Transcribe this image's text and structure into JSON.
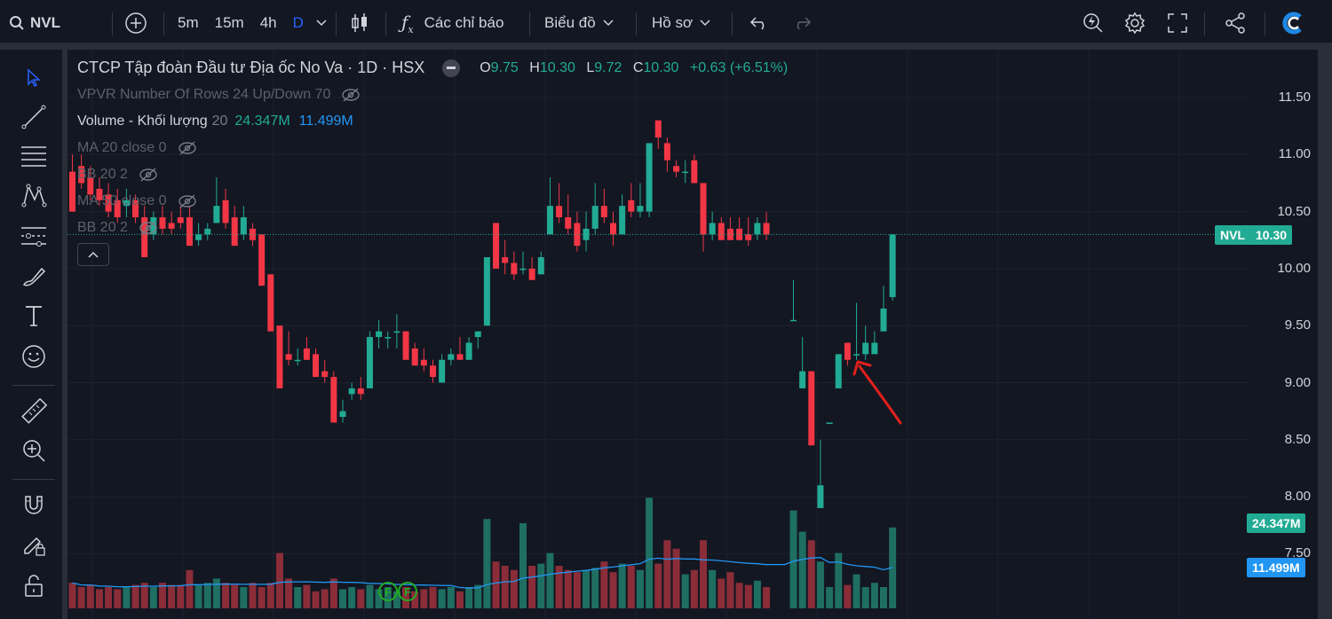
{
  "toolbar": {
    "symbol": "NVL",
    "intervals": [
      "5m",
      "15m",
      "4h",
      "D"
    ],
    "active_interval": "D",
    "indicators_label": "Các chỉ báo",
    "chart_label": "Biểu đồ",
    "profile_label": "Hồ sơ"
  },
  "legend": {
    "title": "CTCP Tập đoàn Đầu tư Địa ốc No Va · 1D · HSX",
    "o_label": "O",
    "o": "9.75",
    "h_label": "H",
    "h": "10.30",
    "l_label": "L",
    "l": "9.72",
    "c_label": "C",
    "c": "10.30",
    "change": "+0.63 (+6.51%)",
    "indicators": [
      {
        "label": "VPVR Number Of Rows 24 Up/Down 70"
      },
      {
        "label": "Volume - Khối lượng",
        "param": "20",
        "v1": "24.347M",
        "v2": "11.499M"
      },
      {
        "label": "MA 20 close 0"
      },
      {
        "label": "BB 20 2"
      },
      {
        "label": "MA 50 close 0"
      },
      {
        "label": "BB 20 2"
      }
    ]
  },
  "price_axis": {
    "ticks": [
      "11.50",
      "11.00",
      "10.50",
      "10.00",
      "9.50",
      "9.00",
      "8.50",
      "8.00",
      "7.50"
    ],
    "last_price_tag": {
      "symbol": "NVL",
      "value": "10.30",
      "color": "#22ab94"
    },
    "volume_tag": {
      "value": "24.347M",
      "color": "#22ab94"
    },
    "volume_ma_tag": {
      "value": "11.499M",
      "color": "#2196f3"
    }
  },
  "markers": [
    "F",
    "F"
  ],
  "colors": {
    "up": "#22ab94",
    "down": "#f23645",
    "vol_up": "#1f6e62",
    "vol_down": "#8a2d38",
    "vol_ma": "#2196f3",
    "annotation": "#e0201c"
  },
  "candles": [
    {
      "o": 10.85,
      "h": 11.0,
      "l": 10.5,
      "c": 10.5
    },
    {
      "o": 10.9,
      "h": 11.0,
      "l": 10.7,
      "c": 10.75
    },
    {
      "o": 10.8,
      "h": 10.9,
      "l": 10.6,
      "c": 10.65
    },
    {
      "o": 10.7,
      "h": 10.8,
      "l": 10.55,
      "c": 10.6
    },
    {
      "o": 10.65,
      "h": 10.75,
      "l": 10.45,
      "c": 10.5
    },
    {
      "o": 10.6,
      "h": 10.7,
      "l": 10.4,
      "c": 10.45
    },
    {
      "o": 10.55,
      "h": 10.7,
      "l": 10.45,
      "c": 10.6
    },
    {
      "o": 10.6,
      "h": 10.65,
      "l": 10.4,
      "c": 10.45
    },
    {
      "o": 10.45,
      "h": 10.55,
      "l": 10.1,
      "c": 10.1
    },
    {
      "o": 10.3,
      "h": 10.5,
      "l": 10.25,
      "c": 10.45
    },
    {
      "o": 10.45,
      "h": 10.55,
      "l": 10.3,
      "c": 10.35
    },
    {
      "o": 10.4,
      "h": 10.5,
      "l": 10.3,
      "c": 10.35
    },
    {
      "o": 10.45,
      "h": 10.55,
      "l": 10.35,
      "c": 10.4
    },
    {
      "o": 10.45,
      "h": 10.55,
      "l": 10.2,
      "c": 10.2
    },
    {
      "o": 10.25,
      "h": 10.4,
      "l": 10.2,
      "c": 10.3
    },
    {
      "o": 10.3,
      "h": 10.4,
      "l": 10.25,
      "c": 10.35
    },
    {
      "o": 10.4,
      "h": 10.8,
      "l": 10.4,
      "c": 10.55
    },
    {
      "o": 10.6,
      "h": 10.7,
      "l": 10.35,
      "c": 10.4
    },
    {
      "o": 10.45,
      "h": 10.55,
      "l": 10.2,
      "c": 10.2
    },
    {
      "o": 10.3,
      "h": 10.55,
      "l": 10.25,
      "c": 10.45
    },
    {
      "o": 10.35,
      "h": 10.4,
      "l": 10.2,
      "c": 10.25
    },
    {
      "o": 10.3,
      "h": 10.3,
      "l": 9.85,
      "c": 9.85
    },
    {
      "o": 9.95,
      "h": 9.95,
      "l": 9.45,
      "c": 9.45
    },
    {
      "o": 9.5,
      "h": 9.5,
      "l": 8.95,
      "c": 8.95
    },
    {
      "o": 9.25,
      "h": 9.45,
      "l": 9.15,
      "c": 9.2
    },
    {
      "o": 9.2,
      "h": 9.3,
      "l": 9.15,
      "c": 9.2
    },
    {
      "o": 9.3,
      "h": 9.4,
      "l": 9.2,
      "c": 9.2
    },
    {
      "o": 9.25,
      "h": 9.3,
      "l": 9.05,
      "c": 9.05
    },
    {
      "o": 9.1,
      "h": 9.2,
      "l": 9.0,
      "c": 9.05
    },
    {
      "o": 9.05,
      "h": 9.1,
      "l": 8.65,
      "c": 8.65
    },
    {
      "o": 8.7,
      "h": 8.85,
      "l": 8.65,
      "c": 8.75
    },
    {
      "o": 8.9,
      "h": 9.0,
      "l": 8.85,
      "c": 8.95
    },
    {
      "o": 8.95,
      "h": 9.05,
      "l": 8.85,
      "c": 8.9
    },
    {
      "o": 8.95,
      "h": 9.45,
      "l": 8.95,
      "c": 9.4
    },
    {
      "o": 9.4,
      "h": 9.55,
      "l": 9.3,
      "c": 9.45
    },
    {
      "o": 9.4,
      "h": 9.45,
      "l": 9.3,
      "c": 9.4
    },
    {
      "o": 9.45,
      "h": 9.6,
      "l": 9.3,
      "c": 9.45
    },
    {
      "o": 9.45,
      "h": 9.45,
      "l": 9.2,
      "c": 9.2
    },
    {
      "o": 9.3,
      "h": 9.35,
      "l": 9.15,
      "c": 9.15
    },
    {
      "o": 9.2,
      "h": 9.3,
      "l": 9.1,
      "c": 9.15
    },
    {
      "o": 9.15,
      "h": 9.2,
      "l": 9.0,
      "c": 9.05
    },
    {
      "o": 9.0,
      "h": 9.25,
      "l": 9.0,
      "c": 9.2
    },
    {
      "o": 9.2,
      "h": 9.3,
      "l": 9.15,
      "c": 9.25
    },
    {
      "o": 9.25,
      "h": 9.4,
      "l": 9.2,
      "c": 9.2
    },
    {
      "o": 9.2,
      "h": 9.4,
      "l": 9.2,
      "c": 9.35
    },
    {
      "o": 9.4,
      "h": 9.45,
      "l": 9.3,
      "c": 9.45
    },
    {
      "o": 9.5,
      "h": 10.1,
      "l": 9.5,
      "c": 10.1
    },
    {
      "o": 10.4,
      "h": 10.4,
      "l": 10.0,
      "c": 10.0
    },
    {
      "o": 10.1,
      "h": 10.25,
      "l": 9.95,
      "c": 10.05
    },
    {
      "o": 10.05,
      "h": 10.15,
      "l": 9.9,
      "c": 9.95
    },
    {
      "o": 10.0,
      "h": 10.15,
      "l": 9.95,
      "c": 10.0
    },
    {
      "o": 10.0,
      "h": 10.1,
      "l": 9.9,
      "c": 9.9
    },
    {
      "o": 9.95,
      "h": 10.15,
      "l": 9.95,
      "c": 10.1
    },
    {
      "o": 10.3,
      "h": 10.8,
      "l": 10.3,
      "c": 10.55
    },
    {
      "o": 10.55,
      "h": 10.75,
      "l": 10.4,
      "c": 10.45
    },
    {
      "o": 10.45,
      "h": 10.65,
      "l": 10.3,
      "c": 10.35
    },
    {
      "o": 10.4,
      "h": 10.5,
      "l": 10.15,
      "c": 10.2
    },
    {
      "o": 10.25,
      "h": 10.5,
      "l": 10.15,
      "c": 10.35
    },
    {
      "o": 10.35,
      "h": 10.75,
      "l": 10.3,
      "c": 10.55
    },
    {
      "o": 10.55,
      "h": 10.7,
      "l": 10.4,
      "c": 10.45
    },
    {
      "o": 10.4,
      "h": 10.5,
      "l": 10.2,
      "c": 10.3
    },
    {
      "o": 10.3,
      "h": 10.65,
      "l": 10.3,
      "c": 10.55
    },
    {
      "o": 10.6,
      "h": 10.75,
      "l": 10.45,
      "c": 10.5
    },
    {
      "o": 10.5,
      "h": 10.75,
      "l": 10.45,
      "c": 10.55
    },
    {
      "o": 10.5,
      "h": 11.1,
      "l": 10.45,
      "c": 11.1
    },
    {
      "o": 11.3,
      "h": 11.3,
      "l": 11.05,
      "c": 11.15
    },
    {
      "o": 11.1,
      "h": 11.15,
      "l": 10.85,
      "c": 10.95
    },
    {
      "o": 10.9,
      "h": 10.95,
      "l": 10.8,
      "c": 10.85
    },
    {
      "o": 10.85,
      "h": 10.95,
      "l": 10.75,
      "c": 10.85
    },
    {
      "o": 10.95,
      "h": 11.0,
      "l": 10.75,
      "c": 10.75
    },
    {
      "o": 10.75,
      "h": 10.75,
      "l": 10.15,
      "c": 10.3
    },
    {
      "o": 10.3,
      "h": 10.5,
      "l": 10.25,
      "c": 10.4
    },
    {
      "o": 10.4,
      "h": 10.45,
      "l": 10.25,
      "c": 10.25
    },
    {
      "o": 10.35,
      "h": 10.45,
      "l": 10.25,
      "c": 10.25
    },
    {
      "o": 10.35,
      "h": 10.45,
      "l": 10.25,
      "c": 10.25
    },
    {
      "o": 10.3,
      "h": 10.45,
      "l": 10.2,
      "c": 10.25
    },
    {
      "o": 10.3,
      "h": 10.45,
      "l": 10.25,
      "c": 10.4
    },
    {
      "o": 10.4,
      "h": 10.5,
      "l": 10.25,
      "c": 10.3
    },
    null,
    null,
    {
      "o": 9.55,
      "h": 9.9,
      "l": 9.55,
      "c": 9.55
    },
    {
      "o": 8.95,
      "h": 9.4,
      "l": 8.95,
      "c": 9.1
    },
    {
      "o": 9.1,
      "h": 9.1,
      "l": 8.45,
      "c": 8.45
    },
    {
      "o": 7.9,
      "h": 8.5,
      "l": 7.9,
      "c": 8.1
    },
    {
      "o": 8.65,
      "h": 8.65,
      "l": 8.65,
      "c": 8.65
    },
    {
      "o": 8.95,
      "h": 9.25,
      "l": 8.95,
      "c": 9.25
    },
    {
      "o": 9.35,
      "h": 9.35,
      "l": 9.15,
      "c": 9.2
    },
    {
      "o": 9.25,
      "h": 9.7,
      "l": 9.2,
      "c": 9.25
    },
    {
      "o": 9.25,
      "h": 9.5,
      "l": 9.2,
      "c": 9.35
    },
    {
      "o": 9.25,
      "h": 9.45,
      "l": 9.25,
      "c": 9.35
    },
    {
      "o": 9.45,
      "h": 9.85,
      "l": 9.45,
      "c": 9.65
    },
    {
      "o": 9.75,
      "h": 10.3,
      "l": 9.72,
      "c": 10.3
    }
  ],
  "volumes": [
    0.6,
    0.5,
    0.55,
    0.45,
    0.5,
    0.45,
    0.5,
    0.55,
    0.6,
    0.5,
    0.6,
    0.55,
    0.55,
    0.9,
    0.55,
    0.6,
    0.7,
    0.6,
    0.55,
    0.5,
    0.6,
    0.5,
    0.6,
    1.3,
    0.7,
    0.5,
    0.55,
    0.4,
    0.45,
    0.7,
    0.45,
    0.5,
    0.45,
    0.55,
    0.45,
    0.5,
    0.4,
    0.5,
    0.4,
    0.45,
    0.5,
    0.45,
    0.5,
    0.4,
    0.5,
    0.55,
    2.1,
    1.1,
    1.0,
    0.9,
    2.0,
    1.0,
    1.05,
    1.3,
    1.0,
    0.9,
    0.85,
    0.9,
    0.95,
    1.1,
    0.85,
    1.05,
    1.0,
    0.9,
    2.6,
    1.05,
    1.6,
    1.4,
    0.8,
    0.9,
    1.6,
    0.9,
    0.7,
    0.85,
    0.6,
    0.55,
    0.65,
    0.5,
    0,
    0,
    2.3,
    1.8,
    1.6,
    1.1,
    0.5,
    1.3,
    0.55,
    0.8,
    0.5,
    0.6,
    0.5,
    1.9
  ]
}
